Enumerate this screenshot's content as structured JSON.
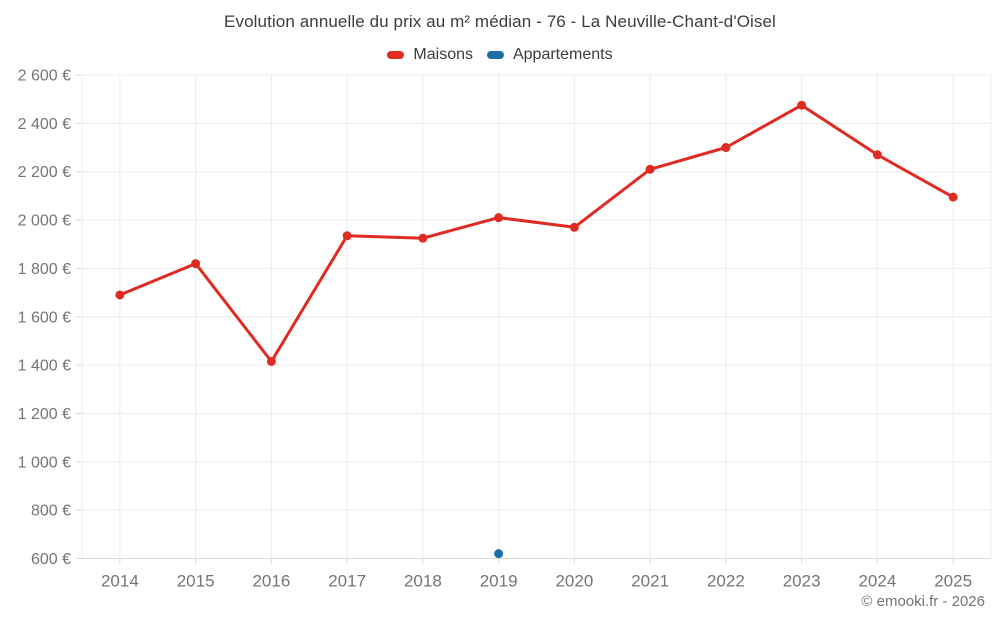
{
  "header": {
    "title": "Evolution annuelle du prix au m² médian - 76 - La Neuville-Chant-d'Oisel"
  },
  "legend": {
    "items": [
      {
        "label": "Maisons",
        "color": "#df2b21"
      },
      {
        "label": "Appartements",
        "color": "#1c6fa4"
      }
    ]
  },
  "footer": {
    "credit": "© emooki.fr - 2026"
  },
  "chart_data": {
    "type": "line",
    "title": "Evolution annuelle du prix au m² médian - 76 - La Neuville-Chant-d'Oisel",
    "categories": [
      "2014",
      "2015",
      "2016",
      "2017",
      "2018",
      "2019",
      "2020",
      "2021",
      "2022",
      "2023",
      "2024",
      "2025"
    ],
    "series": [
      {
        "name": "Maisons",
        "color": "#df2b21",
        "values": [
          1690,
          1820,
          1415,
          1935,
          1925,
          2010,
          1970,
          2210,
          2300,
          2475,
          2270,
          2095
        ]
      },
      {
        "name": "Appartements",
        "color": "#1c6fa4",
        "values": [
          null,
          null,
          null,
          null,
          null,
          620,
          null,
          null,
          null,
          null,
          null,
          null
        ]
      }
    ],
    "ylim": [
      600,
      2600
    ],
    "yticks": [
      {
        "value": 600,
        "label": "600 €"
      },
      {
        "value": 800,
        "label": "800 €"
      },
      {
        "value": 1000,
        "label": "1 000 €"
      },
      {
        "value": 1200,
        "label": "1 200 €"
      },
      {
        "value": 1400,
        "label": "1 400 €"
      },
      {
        "value": 1600,
        "label": "1 600 €"
      },
      {
        "value": 1800,
        "label": "1 800 €"
      },
      {
        "value": 2000,
        "label": "2 000 €"
      },
      {
        "value": 2200,
        "label": "2 200 €"
      },
      {
        "value": 2400,
        "label": "2 400 €"
      },
      {
        "value": 2600,
        "label": "2 600 €"
      }
    ],
    "grid": true,
    "legend_position": "top",
    "currency_suffix": "€"
  }
}
